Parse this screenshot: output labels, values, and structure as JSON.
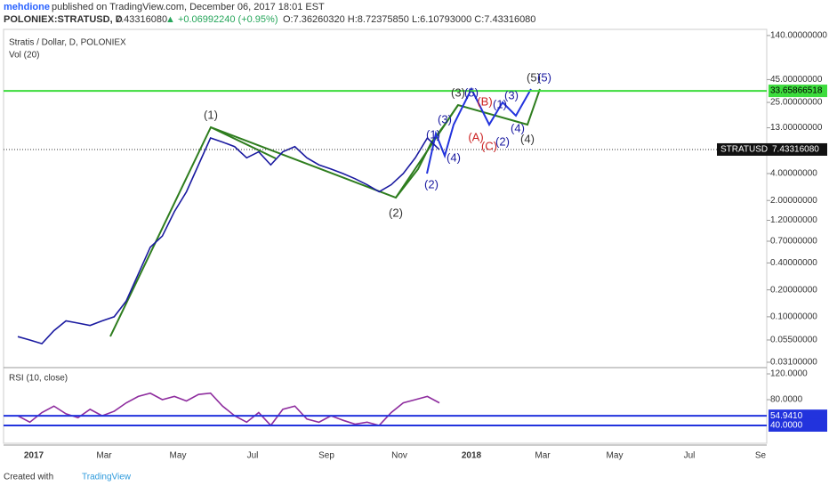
{
  "header": {
    "author": "mehdione",
    "published": "published on TradingView.com, December 06, 2017 18:01 EST",
    "symbol": "POLONIEX:STRATUSD, D",
    "price": "7.43316080",
    "change": "▲ +0.06992240 (+0.95%)",
    "ohlc": "O:7.36260320 H:8.72375850 L:6.10793000 C:7.43316080"
  },
  "chart_data": [
    {
      "type": "line",
      "title": "Stratis / Dollar, D, POLONIEX",
      "indicator": "Vol (20)",
      "log_scale": true,
      "ylim": [
        0.027,
        164
      ],
      "yticks": [
        {
          "value": 140,
          "label": "140.00000000"
        },
        {
          "value": 45,
          "label": "45.00000000"
        },
        {
          "value": 25,
          "label": "25.00000000"
        },
        {
          "value": 13,
          "label": "13.00000000"
        },
        {
          "value": 4,
          "label": "4.00000000"
        },
        {
          "value": 2,
          "label": "2.00000000"
        },
        {
          "value": 1.2,
          "label": "1.20000000"
        },
        {
          "value": 0.7,
          "label": "0.70000000"
        },
        {
          "value": 0.4,
          "label": "0.40000000"
        },
        {
          "value": 0.2,
          "label": "0.20000000"
        },
        {
          "value": 0.1,
          "label": "0.10000000"
        },
        {
          "value": 0.055,
          "label": "0.05500000"
        },
        {
          "value": 0.031,
          "label": "0.03100000"
        }
      ],
      "xlabels": [
        "2017",
        "Mar",
        "May",
        "Jul",
        "Sep",
        "Nov",
        "2018",
        "Mar",
        "May",
        "Jul",
        "Se"
      ],
      "series": [
        {
          "name": "STRATUSD",
          "color": "#1a1aa0",
          "values": [
            0.06,
            0.055,
            0.05,
            0.07,
            0.09,
            0.085,
            0.08,
            0.09,
            0.1,
            0.15,
            0.3,
            0.6,
            0.8,
            1.5,
            2.5,
            5,
            10,
            9,
            8,
            6,
            7,
            5,
            7,
            8,
            6,
            5,
            4.5,
            4,
            3.5,
            3,
            2.5,
            3,
            4,
            6,
            10,
            7.4
          ]
        }
      ],
      "hline": 33.65866518,
      "hline_color": "#3ddc3d",
      "last": {
        "name": "STRATUSD",
        "value": 7.4331608,
        "label": "7.43316080"
      },
      "annotations": [
        {
          "text": "(1)",
          "color": "#333"
        },
        {
          "text": "(2)",
          "color": "#333"
        },
        {
          "text": "(3)",
          "color": "#333"
        },
        {
          "text": "(4)",
          "color": "#333"
        },
        {
          "text": "(5)",
          "color": "#333"
        },
        {
          "text": "(1)",
          "color": "#1a1aa0"
        },
        {
          "text": "(2)",
          "color": "#1a1aa0"
        },
        {
          "text": "(3)",
          "color": "#1a1aa0"
        },
        {
          "text": "(4)",
          "color": "#1a1aa0"
        },
        {
          "text": "(5)",
          "color": "#1a1aa0"
        },
        {
          "text": "(A)",
          "color": "#cc2222"
        },
        {
          "text": "(B)",
          "color": "#cc2222"
        },
        {
          "text": "(C)",
          "color": "#cc2222"
        },
        {
          "text": "(1)",
          "color": "#1a1aa0"
        },
        {
          "text": "(2)",
          "color": "#1a1aa0"
        },
        {
          "text": "(3)",
          "color": "#1a1aa0"
        },
        {
          "text": "(4)",
          "color": "#1a1aa0"
        },
        {
          "text": "(5)",
          "color": "#1a1aa0"
        }
      ]
    },
    {
      "type": "line",
      "title": "RSI (10, close)",
      "ylim": [
        9.6,
        129.7
      ],
      "yticks": [
        {
          "value": 120,
          "label": "120.0000"
        },
        {
          "value": 80,
          "label": "80.0000"
        }
      ],
      "series": [
        {
          "name": "RSI",
          "color": "#8e2c9e",
          "values": [
            55,
            45,
            60,
            70,
            58,
            52,
            65,
            55,
            62,
            75,
            85,
            90,
            80,
            85,
            78,
            88,
            90,
            70,
            55,
            45,
            60,
            40,
            65,
            70,
            50,
            45,
            55,
            48,
            42,
            45,
            40,
            60,
            75,
            80,
            85,
            75
          ]
        }
      ],
      "hlines": [
        {
          "value": 54.941,
          "label": "54.9410"
        },
        {
          "value": 40,
          "label": "40.0000"
        }
      ],
      "hline_color": "#2233dd"
    }
  ],
  "footer": {
    "created": "Created with",
    "brand": "TradingView"
  }
}
